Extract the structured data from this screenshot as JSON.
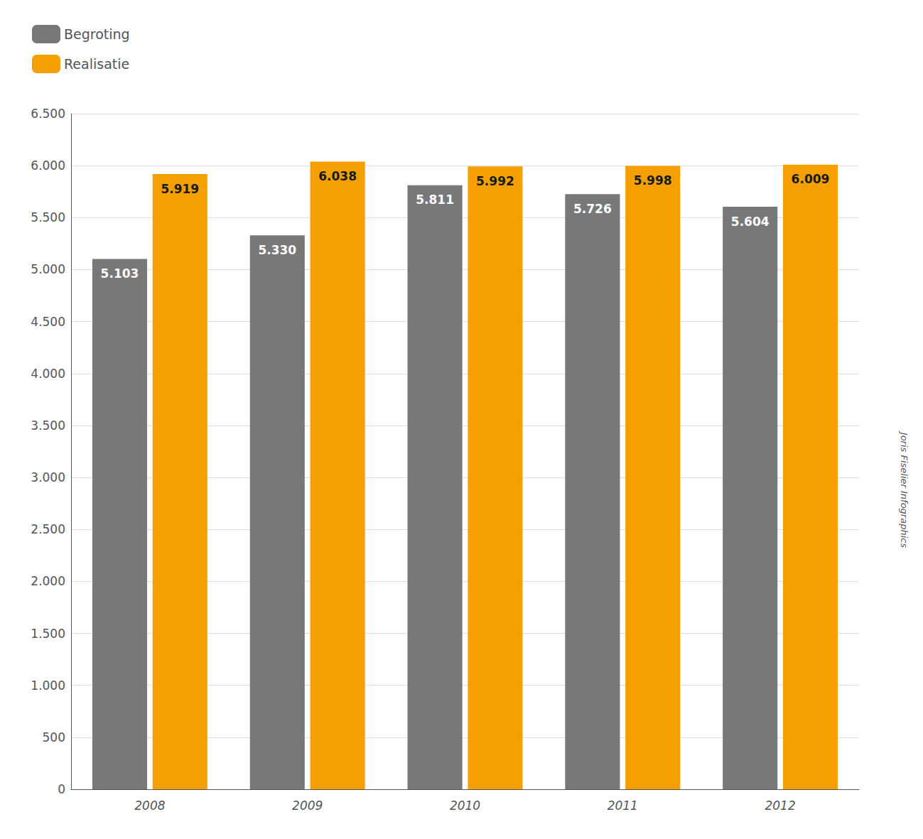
{
  "chart_data": {
    "type": "bar",
    "categories": [
      "2008",
      "2009",
      "2010",
      "2011",
      "2012"
    ],
    "series": [
      {
        "name": "Begroting",
        "color": "#787878",
        "values": [
          5103,
          5330,
          5811,
          5726,
          5604
        ],
        "value_labels": [
          "5.103",
          "5.330",
          "5.811",
          "5.726",
          "5.604"
        ]
      },
      {
        "name": "Realisatie",
        "color": "#F5A000",
        "values": [
          5919,
          6038,
          5992,
          5998,
          6009
        ],
        "value_labels": [
          "5.919",
          "6.038",
          "5.992",
          "5.998",
          "6.009"
        ]
      }
    ],
    "ylim": [
      0,
      6500
    ],
    "yticks": [
      0,
      500,
      {
        "value": 1000,
        "label": "1.000"
      },
      {
        "value": 1500,
        "label": "1.500"
      },
      {
        "value": 2000,
        "label": "2.000"
      },
      {
        "value": 2500,
        "label": "2.500"
      },
      {
        "value": 3000,
        "label": "3.000"
      },
      {
        "value": 3500,
        "label": "3.500"
      },
      {
        "value": 4000,
        "label": "4.000"
      },
      {
        "value": 4500,
        "label": "4.500"
      },
      {
        "value": 5000,
        "label": "5.000"
      },
      {
        "value": 5500,
        "label": "5.500"
      },
      {
        "value": 6000,
        "label": "6.000"
      },
      {
        "value": 6500,
        "label": "6.500"
      }
    ],
    "grid": true,
    "legend": "upper left",
    "data_labels": true,
    "annotations": [
      "Joris Fiselier Infographics"
    ]
  }
}
